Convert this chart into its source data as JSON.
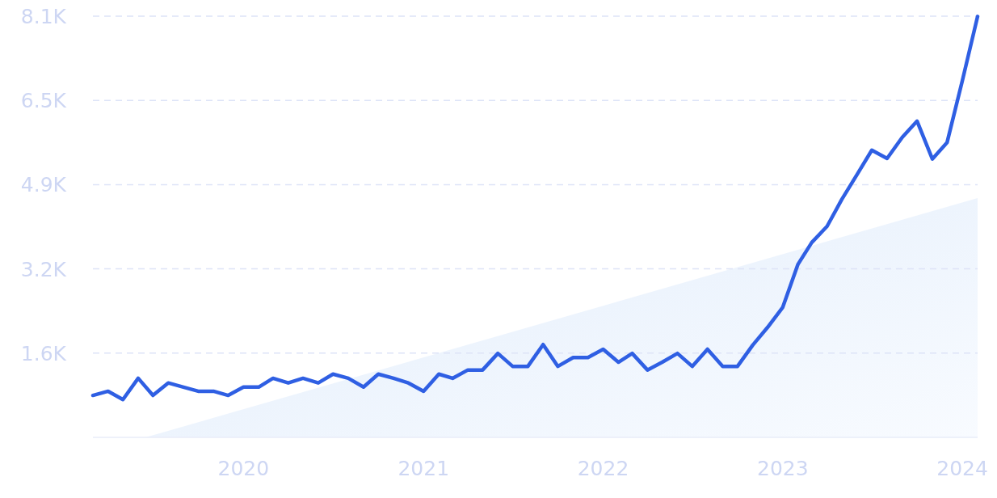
{
  "chart_data": {
    "type": "line",
    "x": [
      "2019-03",
      "2019-04",
      "2019-05",
      "2019-06",
      "2019-07",
      "2019-08",
      "2019-09",
      "2019-10",
      "2019-11",
      "2019-12",
      "2020-01",
      "2020-02",
      "2020-03",
      "2020-04",
      "2020-05",
      "2020-06",
      "2020-07",
      "2020-08",
      "2020-09",
      "2020-10",
      "2020-11",
      "2020-12",
      "2021-01",
      "2021-02",
      "2021-03",
      "2021-04",
      "2021-05",
      "2021-06",
      "2021-07",
      "2021-08",
      "2021-09",
      "2021-10",
      "2021-11",
      "2021-12",
      "2022-01",
      "2022-02",
      "2022-03",
      "2022-04",
      "2022-05",
      "2022-06",
      "2022-07",
      "2022-08",
      "2022-09",
      "2022-10",
      "2022-11",
      "2022-12",
      "2023-01",
      "2023-02",
      "2023-03",
      "2023-04",
      "2023-05",
      "2023-06",
      "2023-07",
      "2023-08",
      "2023-09",
      "2023-10",
      "2023-11",
      "2023-12",
      "2024-01",
      "2024-02"
    ],
    "series": [
      {
        "color": "#2f5fe3",
        "values": [
          810,
          890,
          730,
          1140,
          810,
          1050,
          970,
          890,
          890,
          810,
          970,
          970,
          1140,
          1050,
          1140,
          1050,
          1220,
          1140,
          970,
          1220,
          1140,
          1050,
          890,
          1220,
          1140,
          1300,
          1300,
          1620,
          1370,
          1370,
          1790,
          1370,
          1540,
          1540,
          1700,
          1450,
          1620,
          1300,
          1450,
          1620,
          1370,
          1700,
          1370,
          1370,
          1780,
          2120,
          2510,
          3340,
          3760,
          4070,
          4590,
          5070,
          5540,
          5380,
          5790,
          6100,
          5370,
          5690,
          6880,
          8120
        ]
      }
    ],
    "xlim": [
      "2019-03",
      "2024-02"
    ],
    "xticks": [
      "2020",
      "2021",
      "2022",
      "2023",
      "2024"
    ],
    "ylim": [
      0,
      8125
    ],
    "yticks": [
      {
        "value": 1625,
        "label": "1.6K"
      },
      {
        "value": 3250,
        "label": "3.2K"
      },
      {
        "value": 4875,
        "label": "4.9K"
      },
      {
        "value": 6500,
        "label": "6.5K"
      },
      {
        "value": 8125,
        "label": "8.1K"
      }
    ],
    "grid": "y",
    "line_style": "solid",
    "marker": "none"
  }
}
